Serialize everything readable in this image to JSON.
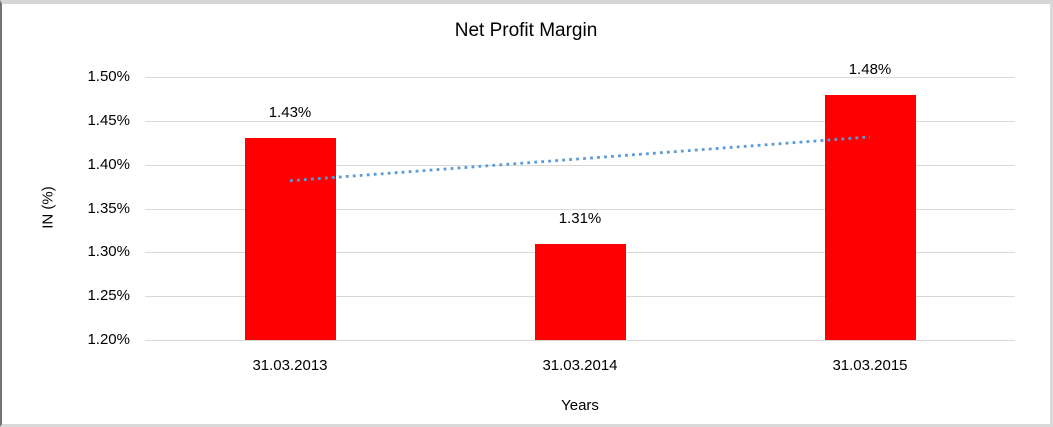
{
  "chart_data": {
    "type": "bar",
    "title": "Net Profit Margin",
    "categories": [
      "31.03.2013",
      "31.03.2014",
      "31.03.2015"
    ],
    "values": [
      1.43,
      1.31,
      1.48
    ],
    "data_labels": [
      "1.43%",
      "1.31%",
      "1.48%"
    ],
    "xlabel": "Years",
    "ylabel": "IN (%)",
    "ylim": [
      1.2,
      1.5
    ],
    "ytick_step": 0.05,
    "ytick_labels": [
      "1.50%",
      "1.45%",
      "1.40%",
      "1.35%",
      "1.30%",
      "1.25%",
      "1.20%"
    ],
    "grid": true,
    "legend": false,
    "bar_color": "#FF0000",
    "gridline_color": "#d9d9d9",
    "text_color": "#000000",
    "trendline": {
      "type": "linear",
      "style": "dotted",
      "color": "#5B9BD5",
      "endpoints_values": [
        1.3817,
        1.4317
      ]
    }
  }
}
